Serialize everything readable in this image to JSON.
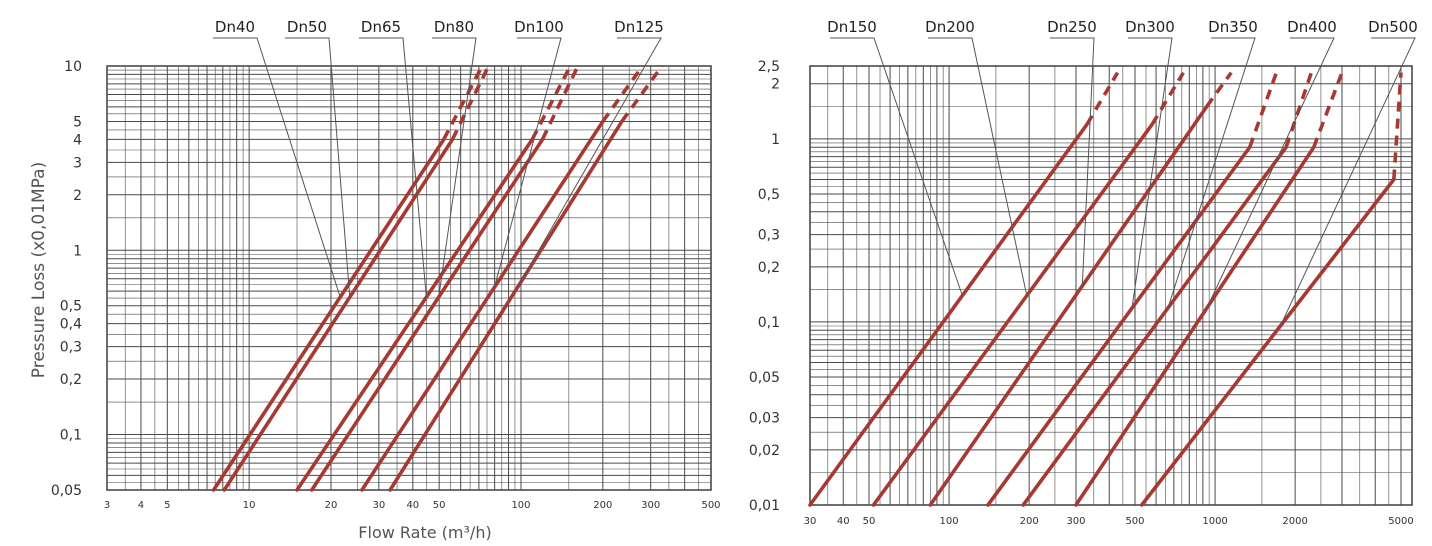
{
  "x_axis_label": "Flow Rate (m³/h)",
  "y_axis_label": "Pressure Loss (x0,01MPa)",
  "colors": {
    "curve": "#a63a32",
    "grid": "#4a4a4a",
    "leader": "#555555",
    "text": "#333333"
  },
  "chart_data": [
    {
      "type": "line",
      "scale": "log-log",
      "grid": true,
      "xlim": [
        3,
        500
      ],
      "ylim": [
        0.05,
        10
      ],
      "xticks": [
        {
          "v": 3,
          "label": "3"
        },
        {
          "v": 4,
          "label": "4"
        },
        {
          "v": 5,
          "label": "5"
        },
        {
          "v": 10,
          "label": "10"
        },
        {
          "v": 20,
          "label": "20"
        },
        {
          "v": 30,
          "label": "30"
        },
        {
          "v": 40,
          "label": "40"
        },
        {
          "v": 50,
          "label": "50"
        },
        {
          "v": 100,
          "label": "100"
        },
        {
          "v": 200,
          "label": "200"
        },
        {
          "v": 300,
          "label": "300"
        },
        {
          "v": 500,
          "label": "500"
        }
      ],
      "yticks": [
        {
          "v": 0.05,
          "label": "0,05"
        },
        {
          "v": 0.1,
          "label": "0,1"
        },
        {
          "v": 0.2,
          "label": "0,2"
        },
        {
          "v": 0.3,
          "label": "0,3"
        },
        {
          "v": 0.4,
          "label": "0,4"
        },
        {
          "v": 0.5,
          "label": "0,5"
        },
        {
          "v": 1,
          "label": "1"
        },
        {
          "v": 2,
          "label": "2"
        },
        {
          "v": 3,
          "label": "3"
        },
        {
          "v": 4,
          "label": "4"
        },
        {
          "v": 5,
          "label": "5"
        },
        {
          "v": 10,
          "label": "10"
        }
      ],
      "series_labels": [
        "Dn40",
        "Dn50",
        "Dn65",
        "Dn80",
        "Dn100",
        "Dn125"
      ],
      "series": [
        {
          "name": "Dn40",
          "solid": [
            [
              7.4,
              0.05
            ],
            [
              52,
              4
            ]
          ],
          "dashed_end": [
            [
              72,
              10
            ]
          ]
        },
        {
          "name": "Dn50",
          "solid": [
            [
              8.1,
              0.05
            ],
            [
              56,
              4
            ]
          ],
          "dashed_end": [
            [
              76,
              10
            ]
          ]
        },
        {
          "name": "Dn65",
          "solid": [
            [
              15,
              0.05
            ],
            [
              110,
              4
            ]
          ],
          "dashed_end": [
            [
              152,
              10
            ]
          ]
        },
        {
          "name": "Dn80",
          "solid": [
            [
              17,
              0.05
            ],
            [
              120,
              4
            ]
          ],
          "dashed_end": [
            [
              162,
              10
            ]
          ]
        },
        {
          "name": "Dn100",
          "solid": [
            [
              26,
              0.05
            ],
            [
              200,
              5
            ]
          ],
          "dashed_end": [
            [
              280,
              10
            ]
          ]
        },
        {
          "name": "Dn125",
          "solid": [
            [
              33,
              0.05
            ],
            [
              235,
              5
            ]
          ],
          "dashed_end": [
            [
              330,
              10
            ]
          ]
        }
      ]
    },
    {
      "type": "line",
      "scale": "log-log",
      "grid": true,
      "xlim": [
        30,
        5500
      ],
      "ylim": [
        0.01,
        2.5
      ],
      "xticks": [
        {
          "v": 30,
          "label": "30"
        },
        {
          "v": 40,
          "label": "40"
        },
        {
          "v": 50,
          "label": "50"
        },
        {
          "v": 100,
          "label": "100"
        },
        {
          "v": 200,
          "label": "200"
        },
        {
          "v": 300,
          "label": "300"
        },
        {
          "v": 500,
          "label": "500"
        },
        {
          "v": 1000,
          "label": "1000"
        },
        {
          "v": 2000,
          "label": "2000"
        },
        {
          "v": 5000,
          "label": "5000"
        }
      ],
      "yticks": [
        {
          "v": 0.01,
          "label": "0,01"
        },
        {
          "v": 0.02,
          "label": "0,02"
        },
        {
          "v": 0.03,
          "label": "0,03"
        },
        {
          "v": 0.05,
          "label": "0,05"
        },
        {
          "v": 0.1,
          "label": "0,1"
        },
        {
          "v": 0.2,
          "label": "0,2"
        },
        {
          "v": 0.3,
          "label": "0,3"
        },
        {
          "v": 0.5,
          "label": "0,5"
        },
        {
          "v": 1,
          "label": "1"
        },
        {
          "v": 2,
          "label": "2"
        },
        {
          "v": 2.5,
          "label": "2,5"
        }
      ],
      "series_labels": [
        "Dn150",
        "Dn200",
        "Dn250",
        "Dn300",
        "Dn350",
        "Dn400",
        "Dn500"
      ],
      "series": [
        {
          "name": "Dn150",
          "solid": [
            [
              30,
              0.01
            ],
            [
              330,
              1.2
            ]
          ],
          "dashed_end": [
            [
              430,
              2.3
            ]
          ]
        },
        {
          "name": "Dn200",
          "solid": [
            [
              52,
              0.01
            ],
            [
              580,
              1.2
            ]
          ],
          "dashed_end": [
            [
              760,
              2.3
            ]
          ]
        },
        {
          "name": "Dn250",
          "solid": [
            [
              85,
              0.01
            ],
            [
              930,
              1.5
            ]
          ],
          "dashed_end": [
            [
              1150,
              2.3
            ]
          ]
        },
        {
          "name": "Dn300",
          "solid": [
            [
              140,
              0.01
            ],
            [
              1350,
              0.9
            ]
          ],
          "dashed_end": [
            [
              1700,
              2.3
            ]
          ]
        },
        {
          "name": "Dn350",
          "solid": [
            [
              190,
              0.01
            ],
            [
              1850,
              0.9
            ]
          ],
          "dashed_end": [
            [
              2300,
              2.3
            ]
          ]
        },
        {
          "name": "Dn400",
          "solid": [
            [
              300,
              0.01
            ],
            [
              2350,
              0.9
            ]
          ],
          "dashed_end": [
            [
              3000,
              2.3
            ]
          ]
        },
        {
          "name": "Dn500",
          "solid": [
            [
              530,
              0.01
            ],
            [
              4700,
              0.6
            ]
          ],
          "dashed_end": [
            [
              5000,
              2.3
            ]
          ]
        }
      ]
    }
  ]
}
